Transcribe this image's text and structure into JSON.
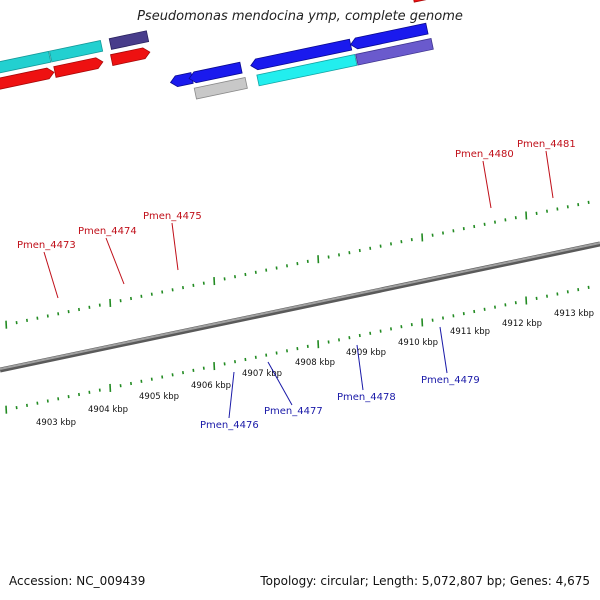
{
  "title": "Pseudomonas mendocina ymp, complete genome",
  "footer": {
    "accession": "Accession: NC_009439",
    "topology": "Topology: circular; Length: 5,072,807 bp; Genes: 4,675"
  },
  "colors": {
    "red": "#ee1111",
    "blue": "#1a1aee",
    "cyan": "#22dddd",
    "dark_cyan": "#1fbcbc",
    "slate": "#6a5acd",
    "navy_slate": "#483d8b",
    "grey": "#c0c0c0",
    "olive": "#bdb76b",
    "backbone": "#777777",
    "ticks": "#228b22"
  },
  "scale_labels": [
    "4903 kbp",
    "4904 kbp",
    "4905 kbp",
    "4906 kbp",
    "4907 kbp",
    "4908 kbp",
    "4909 kbp",
    "4910 kbp",
    "4911 kbp",
    "4912 kbp",
    "4913 kbp"
  ],
  "gene_labels": [
    {
      "text": "Pmen_4473",
      "strand": "forward"
    },
    {
      "text": "Pmen_4474",
      "strand": "forward"
    },
    {
      "text": "Pmen_4475",
      "strand": "forward"
    },
    {
      "text": "Pmen_4480",
      "strand": "forward"
    },
    {
      "text": "Pmen_4481",
      "strand": "forward"
    },
    {
      "text": "Pmen_4476",
      "strand": "reverse"
    },
    {
      "text": "Pmen_4477",
      "strand": "reverse"
    },
    {
      "text": "Pmen_4478",
      "strand": "reverse"
    },
    {
      "text": "Pmen_4479",
      "strand": "reverse"
    }
  ]
}
